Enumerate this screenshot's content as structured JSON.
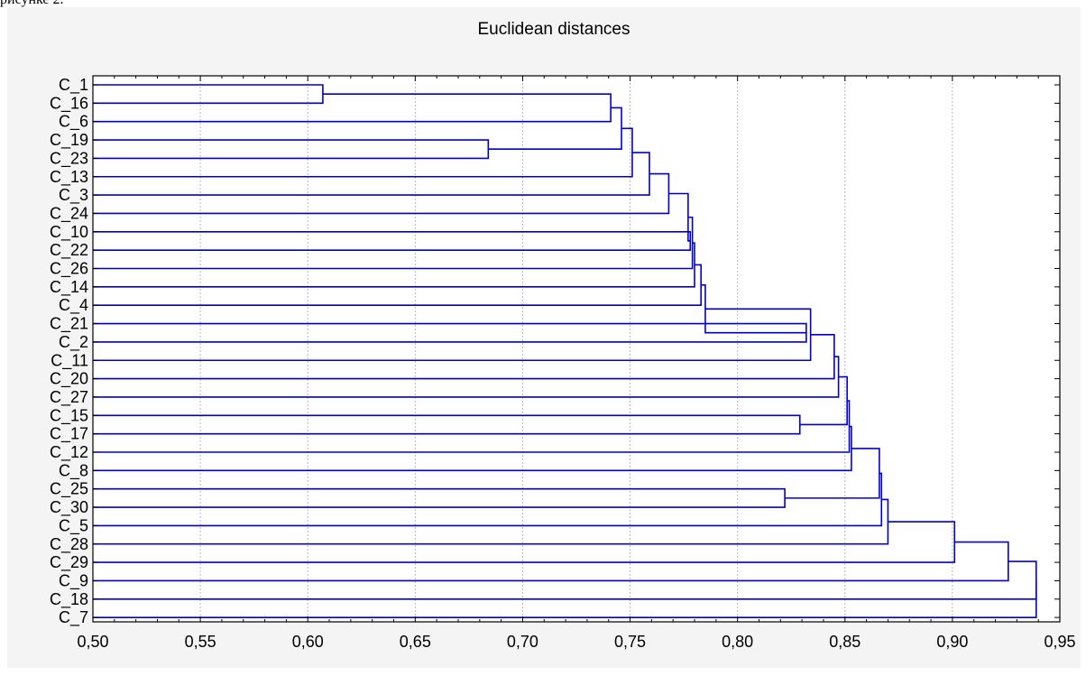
{
  "page_fragment": "рисунке 2.",
  "colors": {
    "background": "#F4F4F4",
    "plot_area": "#FFFFFF",
    "line": "#0000CC",
    "grid": "#B8B8B8",
    "text": "#000000"
  },
  "chart_data": {
    "type": "dendrogram",
    "orientation": "horizontal",
    "title": "Euclidean distances",
    "xlabel": "",
    "ylabel": "",
    "xlim": [
      0.5,
      0.95
    ],
    "xticks": [
      0.5,
      0.55,
      0.6,
      0.65,
      0.7,
      0.75,
      0.8,
      0.85,
      0.9,
      0.95
    ],
    "xtick_labels": [
      "0,50",
      "0,55",
      "0,60",
      "0,65",
      "0,70",
      "0,75",
      "0,80",
      "0,85",
      "0,90",
      "0,95"
    ],
    "grid": "vertical dotted",
    "leaves": [
      "C_1",
      "C_16",
      "C_6",
      "C_19",
      "C_23",
      "C_13",
      "C_3",
      "C_24",
      "C_10",
      "C_22",
      "C_26",
      "C_14",
      "C_4",
      "C_21",
      "C_2",
      "C_11",
      "C_20",
      "C_27",
      "C_15",
      "C_17",
      "C_12",
      "C_8",
      "C_25",
      "C_30",
      "C_5",
      "C_28",
      "C_29",
      "C_9",
      "C_18",
      "C_7"
    ],
    "merges": [
      {
        "a": "C_1",
        "b": "C_16",
        "height": 0.607
      },
      {
        "a": "C_19",
        "b": "C_23",
        "height": 0.684
      },
      {
        "a": "C_25",
        "b": "C_30",
        "height": 0.822
      },
      {
        "a": "C_15",
        "b": "C_17",
        "height": 0.829
      },
      {
        "a": "C_21",
        "b": "C_2",
        "height": 0.832
      },
      {
        "a": "C_10",
        "b": "C_22",
        "height": 0.778
      },
      {
        "a": "N0",
        "b": "C_6",
        "height": 0.741
      },
      {
        "a": "N6",
        "b": "N1",
        "height": 0.746
      },
      {
        "a": "N7",
        "b": "C_13",
        "height": 0.751
      },
      {
        "a": "N8",
        "b": "C_3",
        "height": 0.759
      },
      {
        "a": "N9",
        "b": "C_24",
        "height": 0.768
      },
      {
        "a": "N10",
        "b": "N5",
        "height": 0.777
      },
      {
        "a": "N11",
        "b": "C_26",
        "height": 0.779
      },
      {
        "a": "N12",
        "b": "C_14",
        "height": 0.78
      },
      {
        "a": "N13",
        "b": "C_4",
        "height": 0.783
      },
      {
        "a": "N14",
        "b": "N4",
        "height": 0.785
      },
      {
        "a": "N15",
        "b": "C_11",
        "height": 0.834
      },
      {
        "a": "N16",
        "b": "C_20",
        "height": 0.845
      },
      {
        "a": "N17",
        "b": "C_27",
        "height": 0.847
      },
      {
        "a": "N18",
        "b": "N3",
        "height": 0.851
      },
      {
        "a": "N19",
        "b": "C_12",
        "height": 0.852
      },
      {
        "a": "N20",
        "b": "C_8",
        "height": 0.853
      },
      {
        "a": "N21",
        "b": "N2",
        "height": 0.866
      },
      {
        "a": "N22",
        "b": "C_5",
        "height": 0.867
      },
      {
        "a": "N23",
        "b": "C_28",
        "height": 0.87
      },
      {
        "a": "N24",
        "b": "C_29",
        "height": 0.901
      },
      {
        "a": "N25",
        "b": "C_9",
        "height": 0.926
      },
      {
        "a": "N26",
        "b": "C_18",
        "height": 0.939
      },
      {
        "a": "N27",
        "b": "C_7",
        "height": 0.939
      }
    ]
  }
}
